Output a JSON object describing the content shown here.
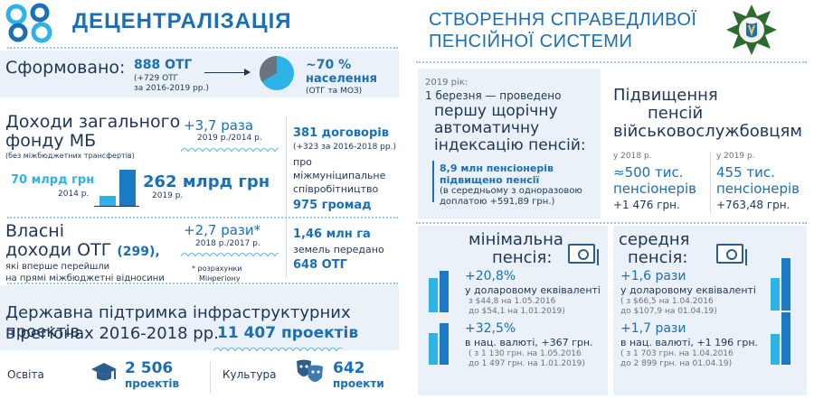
{
  "left": {
    "title": "ДЕЦЕНТРАЛІЗАЦІЯ",
    "formed": {
      "label": "Сформовано:",
      "otg_count": "888 ОТГ",
      "otg_added": "(+729 ОТГ",
      "otg_period": "за 2016-2019 рр.)",
      "population_share": "~70 %",
      "population_label": "населення",
      "population_note": "(ОТГ та МОЗ)"
    },
    "revenues": {
      "title_line1": "Доходи загального",
      "title_line2": "фонду МБ",
      "subtitle": "(без міжбюджетних трансфертів)",
      "growth": "+3,7 раза",
      "growth_period": "2019 р./2014 р.",
      "value_2014": "70 млрд грн",
      "year_2014": "2014 р.",
      "value_2019": "262 млрд грн",
      "year_2019": "2019 р.",
      "bar_values": [
        70,
        262
      ]
    },
    "cooperation": {
      "contracts": "381 договорів",
      "contracts_added": "(+323 за 2016-2018 рр.)",
      "line1": "про",
      "line2": "міжмуніципальне",
      "line3": "співробітництво",
      "communities": "975 громад"
    },
    "own_revenues": {
      "title_line1": "Власні",
      "title_line2": "доходи ОТГ",
      "count": "(299),",
      "desc_line1": "які вперше перейшли",
      "desc_line2": "на прямі міжбюджетні відносини",
      "growth": "+2,7 рази*",
      "growth_period": "2018 р./2017 р.",
      "footnote_line1": "* розрахунки",
      "footnote_line2": "Мінрегіону"
    },
    "land": {
      "area": "1,46 млн га",
      "desc": "земель передано",
      "otg": "648 ОТГ"
    },
    "infrastructure": {
      "title_line1": "Державна підтримка інфраструктурних проектів",
      "title_line2": "в регіонах 2016-2018 рр.",
      "projects": "11 407 проектів",
      "education_label": "Освіта",
      "education_count": "2 506",
      "education_unit": "проектів",
      "culture_label": "Культура",
      "culture_count": "642",
      "culture_unit": "проекти"
    }
  },
  "right": {
    "title_line1": "СТВОРЕННЯ СПРАВЕДЛИВОЇ",
    "title_line2": "ПЕНСІЙНОЇ СИСТЕМИ",
    "indexation": {
      "year": "2019 рік:",
      "date_line": "1 березня — проведено",
      "main_line1": "першу щорічну",
      "main_line2": "автоматичну",
      "main_line3": "індексацію пенсій:",
      "pensioners": "8,9 млн пенсіонерів",
      "raised": "підвищено пенсії",
      "detail_line1": "(в середньому з одноразовою",
      "detail_line2": "доплатою +591,89 грн.)"
    },
    "military": {
      "title_line1": "Підвищення",
      "title_line2": "пенсій",
      "title_line3": "військовослужбовцям",
      "y2018_label": "у 2018 р.",
      "y2018_count": "≈500 тис.",
      "y2018_unit": "пенсіонерів",
      "y2018_raise": "+1 476 грн.",
      "y2019_label": "у 2019 р.",
      "y2019_count": "455 тис.",
      "y2019_unit": "пенсіонерів",
      "y2019_raise": "+763,48 грн."
    },
    "minimal": {
      "title_line1": "мінімальна",
      "title_line2": "пенсія:",
      "usd_growth": "+20,8%",
      "usd_label": "у доларовому еквіваленті",
      "usd_from": "з $44,8 на 1.05.2016",
      "usd_to": "до $54,1 на 1.01.2019)",
      "uah_growth": "+32,5%",
      "uah_label": "в нац. валюті, +367 грн.",
      "uah_from": "( з 1 130 грн. на 1.05.2016",
      "uah_to": "до 1 497 грн. на 1.01.2019)",
      "usd_values": [
        44.8,
        54.1
      ],
      "uah_values": [
        1130,
        1497
      ]
    },
    "average": {
      "title_line1": "середня",
      "title_line2": "пенсія:",
      "usd_growth": "+1,6 рази",
      "usd_label": "у доларовому еквіваленті",
      "usd_from": "( з $66,5 на 1.04.2016",
      "usd_to": "до $107,9 на 01.04.19)",
      "uah_growth": "+1,7 рази",
      "uah_label": "в нац. валюті, +1 196 грн.",
      "uah_from": "( з 1 703 грн. на 1.04.2016",
      "uah_to": "до 2 899 грн. на 01.04.19)",
      "usd_values": [
        66.5,
        107.9
      ],
      "uah_values": [
        1703,
        2899
      ]
    }
  },
  "colors": {
    "accent_blue": "#1a6fb7",
    "navy": "#1f3558",
    "light_band": "#eaf1f8",
    "cyan": "#2cb3e8",
    "emblem_green": "#2d6a2f"
  }
}
